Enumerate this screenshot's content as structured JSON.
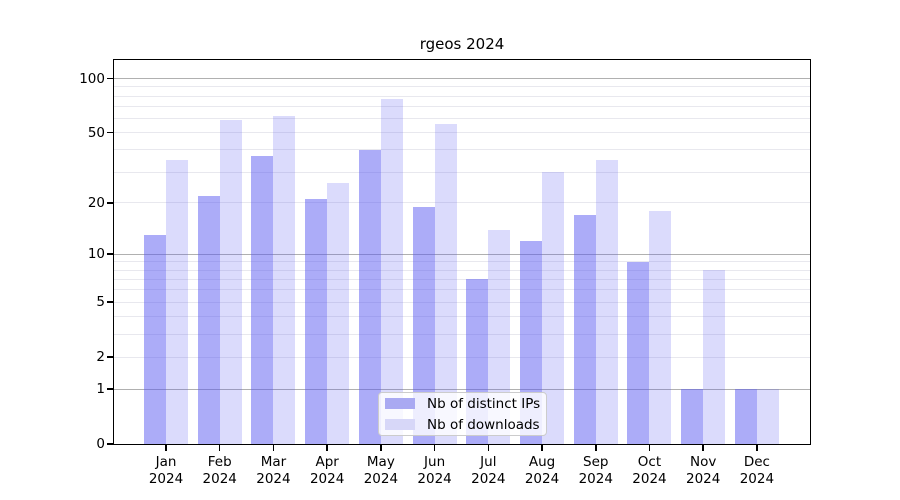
{
  "chart_data": {
    "type": "bar",
    "title": "rgeos 2024",
    "categories": [
      "Jan",
      "Feb",
      "Mar",
      "Apr",
      "May",
      "Jun",
      "Jul",
      "Aug",
      "Sep",
      "Oct",
      "Nov",
      "Dec"
    ],
    "x_tick_second_line": "2024",
    "series": [
      {
        "name": "Nb of distinct IPs",
        "values": [
          13,
          22,
          37,
          21,
          40,
          19,
          7,
          12,
          17,
          9,
          1,
          1
        ],
        "fill": "rgba(85,85,240,0.49)",
        "legend_color": "#a9a9f2"
      },
      {
        "name": "Nb of downloads",
        "values": [
          35,
          59,
          62,
          26,
          77,
          56,
          14,
          30,
          35,
          18,
          8,
          1
        ],
        "fill": "rgba(85,85,240,0.21)",
        "legend_color": "#d7d7f8"
      }
    ],
    "yaxis": {
      "scale": "log10(value+1)",
      "tick_labels": [
        0,
        1,
        2,
        5,
        10,
        20,
        50,
        100
      ],
      "major_gridlines": [
        1,
        10,
        100
      ],
      "minor_gridlines": [
        2,
        3,
        4,
        5,
        6,
        7,
        8,
        9,
        20,
        30,
        40,
        50,
        60,
        70,
        80,
        90
      ],
      "range": [
        0,
        100
      ]
    },
    "legend": {
      "position": "inside-bottom-center"
    },
    "grid": true,
    "colors": {
      "axis": "#000000",
      "major_grid": "#b0b0b0",
      "minor_grid": "#e8e8ee",
      "background": "#ffffff"
    }
  }
}
